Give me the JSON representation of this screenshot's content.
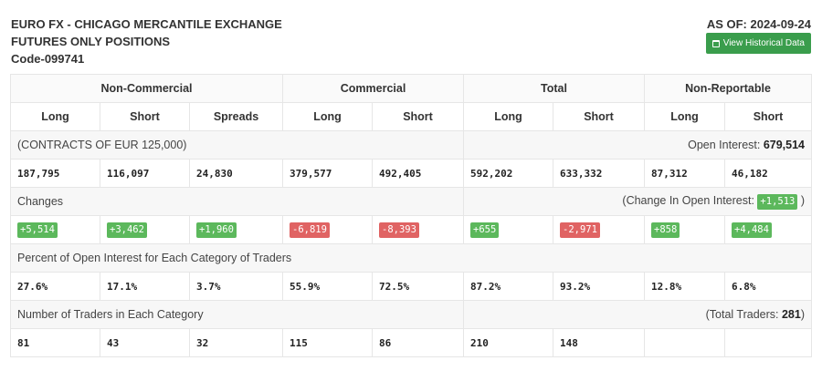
{
  "header": {
    "title_line1": "EURO FX - CHICAGO MERCANTILE EXCHANGE",
    "title_line2": "FUTURES ONLY POSITIONS",
    "code": "Code-099741",
    "as_of": "AS OF: 2024-09-24",
    "history_button": "View Historical Data"
  },
  "groups": [
    "Non-Commercial",
    "Commercial",
    "Total",
    "Non-Reportable"
  ],
  "columns": [
    "Long",
    "Short",
    "Spreads",
    "Long",
    "Short",
    "Long",
    "Short",
    "Long",
    "Short"
  ],
  "contracts": {
    "label": "(CONTRACTS OF EUR 125,000)",
    "oi_label": "Open Interest:",
    "oi_value": "679,514",
    "values": [
      "187,795",
      "116,097",
      "24,830",
      "379,577",
      "492,405",
      "592,202",
      "633,332",
      "87,312",
      "46,182"
    ]
  },
  "changes": {
    "label": "Changes",
    "oi_prefix": "(Change In Open Interest:",
    "oi_value": "+1,513",
    "oi_suffix": ")",
    "values": [
      "+5,514",
      "+3,462",
      "+1,960",
      "-6,819",
      "-8,393",
      "+655",
      "-2,971",
      "+858",
      "+4,484"
    ]
  },
  "percent": {
    "label": "Percent of Open Interest for Each Category of Traders",
    "values": [
      "27.6%",
      "17.1%",
      "3.7%",
      "55.9%",
      "72.5%",
      "87.2%",
      "93.2%",
      "12.8%",
      "6.8%"
    ]
  },
  "traders": {
    "label": "Number of Traders in Each Category",
    "total_prefix": "(Total Traders:",
    "total_value": "281",
    "total_suffix": ")",
    "values": [
      "81",
      "43",
      "32",
      "115",
      "86",
      "210",
      "148",
      "",
      ""
    ]
  },
  "colors": {
    "positive": "#5cb85c",
    "negative": "#e06363",
    "button": "#3a9d4c"
  }
}
